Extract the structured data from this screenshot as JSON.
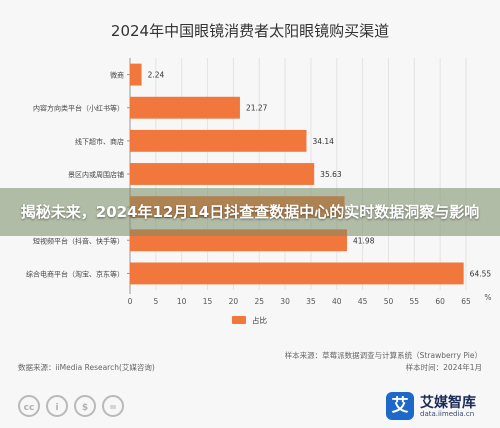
{
  "banner": {
    "text": "揭秘未来，2024年12月14日抖查查数据中心的实时数据洞察与影响"
  },
  "chart_data": {
    "type": "bar",
    "orientation": "horizontal",
    "title": "2024年中国眼镜消费者太阳眼镜购买渠道",
    "categories": [
      "微商",
      "内容方向类平台（小红书等）",
      "线下超市、商店",
      "景区内或周围店铺",
      "",
      "短视频平台（抖音、快手等）",
      "综合电商平台（淘宝、京东等）"
    ],
    "values": [
      2.24,
      21.27,
      34.14,
      35.63,
      41.5,
      41.98,
      64.55
    ],
    "data_labels": [
      "2.24",
      "21.27",
      "34.14",
      "35.63",
      "",
      "41.98",
      "64.55"
    ],
    "xlim": [
      0,
      65
    ],
    "x_ticks": [
      "0",
      "5",
      "10",
      "15",
      "20",
      "25",
      "30",
      "35",
      "40",
      "45",
      "50",
      "55",
      "60",
      "65"
    ],
    "x_unit": "%",
    "legend": {
      "label": "占比",
      "position": "bottom"
    },
    "bar_color": "#f2773d",
    "grid": true
  },
  "notes": {
    "sample": "样本来源：草莓派数据调查与计算系统（Strawberry Pie）",
    "period": "样本时间：2024年1月",
    "source": "数据来源：iiMedia Research(艾媒咨询)"
  },
  "footer": {
    "cc_marks": [
      "cc",
      "i",
      "$",
      "="
    ],
    "brand_glyph": "艾",
    "brand_name": "艾媒智库",
    "brand_url": "data.iimedia.cn"
  }
}
